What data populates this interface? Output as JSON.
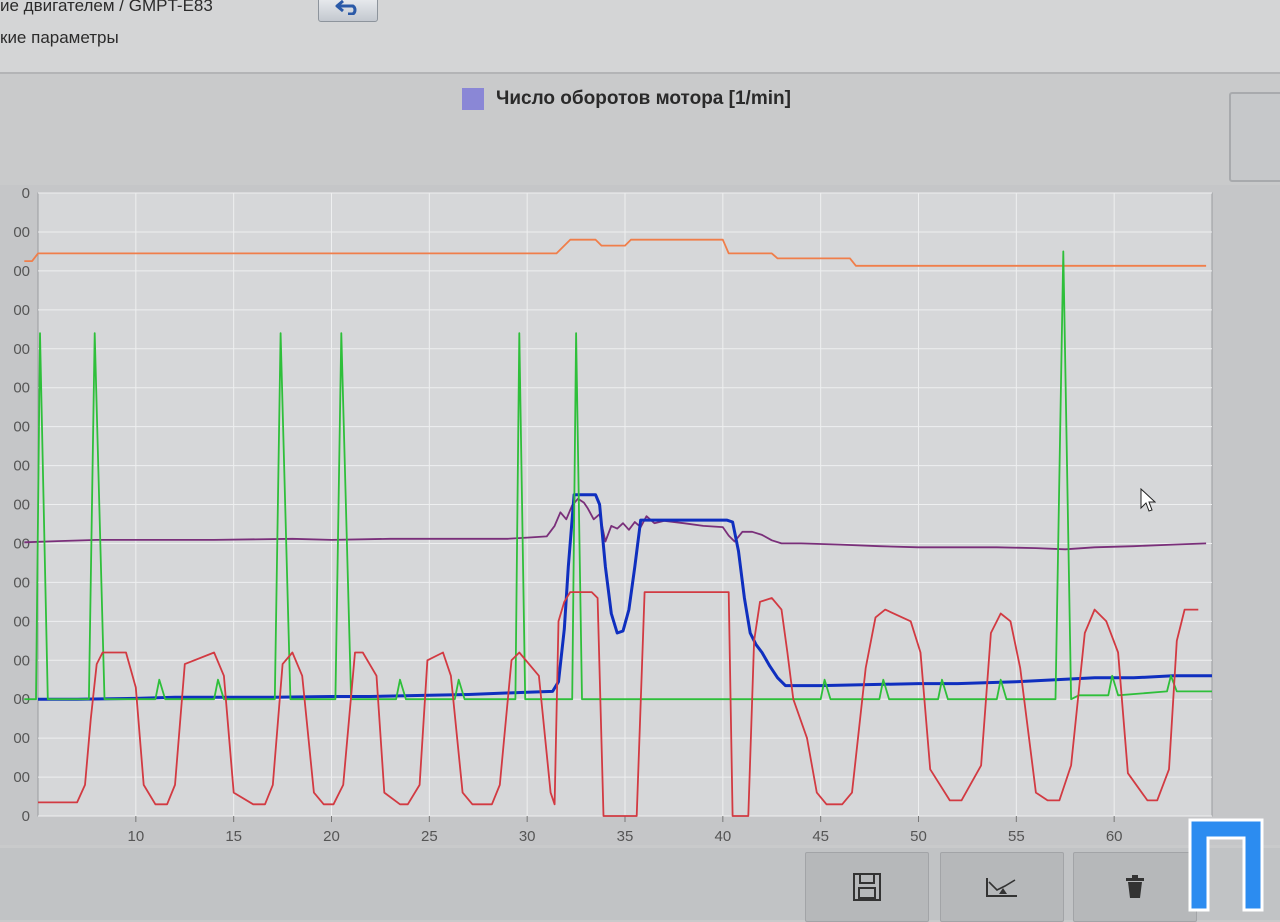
{
  "header": {
    "title_line1": "ие двигателем / GMPT-E83",
    "title_line2": "кие параметры",
    "back_icon": "back-arrow-icon"
  },
  "legend": {
    "label": "Число оборотов мотора [1/min]",
    "swatch_color": "#8a87d6"
  },
  "chart_data": {
    "type": "line",
    "title": "Число оборотов мотора [1/min]",
    "xlabel": "",
    "ylabel": "",
    "xlim": [
      5,
      65
    ],
    "ylim": [
      0,
      1600
    ],
    "x_ticks": [
      "10",
      "15",
      "20",
      "25",
      "30",
      "35",
      "40",
      "45",
      "50",
      "55",
      "60"
    ],
    "y_ticks": [
      "0",
      "00",
      "00",
      "00",
      "00",
      "00",
      "00",
      "00",
      "00",
      "00",
      "00",
      "00",
      "00",
      "00",
      "00",
      "00",
      "0"
    ],
    "grid": true,
    "series": [
      {
        "color": "#f07e4a",
        "x": [
          4.3,
          4.7,
          5.0,
          31.5,
          31.8,
          32.2,
          33.5,
          33.8,
          35.0,
          35.3,
          40.0,
          40.3,
          42.5,
          42.8,
          46.5,
          46.8,
          64.7
        ],
        "y": [
          1425,
          1425,
          1445,
          1445,
          1460,
          1480,
          1480,
          1465,
          1465,
          1480,
          1480,
          1445,
          1445,
          1432,
          1432,
          1413,
          1413
        ]
      },
      {
        "color": "#7a2f7a",
        "x": [
          4.3,
          6,
          8,
          10,
          14,
          18,
          20,
          23,
          25,
          27,
          29,
          30,
          31.0,
          31.4,
          31.7,
          32.0,
          32.3,
          32.6,
          32.9,
          33.1,
          33.4,
          33.7,
          34.0,
          34.3,
          34.6,
          34.9,
          35.2,
          35.5,
          35.8,
          36.1,
          36.5,
          37,
          38,
          39,
          40,
          40.3,
          40.6,
          41,
          41.5,
          42,
          42.5,
          43,
          44,
          46,
          48,
          50,
          52,
          54,
          56,
          57.5,
          59,
          61,
          63,
          64.7
        ],
        "y": [
          703,
          706,
          709,
          709,
          709,
          712,
          709,
          712,
          712,
          712,
          712,
          715,
          718,
          745,
          780,
          762,
          798,
          815,
          805,
          790,
          762,
          775,
          705,
          745,
          738,
          752,
          735,
          755,
          742,
          770,
          752,
          758,
          752,
          745,
          742,
          720,
          705,
          730,
          730,
          722,
          708,
          700,
          700,
          697,
          693,
          690,
          690,
          690,
          688,
          685,
          690,
          693,
          697,
          700
        ]
      },
      {
        "color": "#0f2fbf",
        "x": [
          5,
          7,
          10,
          12,
          15,
          17,
          20,
          22,
          25,
          27,
          30,
          31.3,
          31.6,
          31.9,
          32.1,
          32.4,
          33.5,
          33.7,
          34.0,
          34.3,
          34.6,
          34.9,
          35.2,
          35.5,
          35.8,
          40.2,
          40.5,
          40.8,
          41.1,
          41.4,
          41.7,
          42.0,
          42.4,
          42.8,
          43.2,
          45,
          48,
          50,
          52,
          55,
          57,
          59,
          61,
          63,
          65
        ],
        "y": [
          300,
          300,
          302,
          305,
          305,
          305,
          307,
          307,
          310,
          312,
          318,
          320,
          345,
          480,
          640,
          825,
          825,
          800,
          640,
          520,
          470,
          475,
          530,
          640,
          760,
          760,
          755,
          680,
          560,
          470,
          440,
          420,
          385,
          355,
          335,
          335,
          338,
          340,
          340,
          345,
          350,
          355,
          355,
          360,
          360
        ]
      },
      {
        "color": "#2ebf3a",
        "x": [
          4.3,
          4.9,
          5.1,
          5.5,
          6.0,
          6.4,
          7.6,
          7.9,
          8.4,
          8.8,
          11.0,
          11.2,
          11.5,
          14.0,
          14.2,
          14.5,
          17.1,
          17.4,
          17.9,
          18.3,
          20.2,
          20.5,
          21.0,
          21.4,
          23.3,
          23.5,
          23.8,
          26.3,
          26.5,
          26.8,
          29.4,
          29.6,
          29.9,
          32.3,
          32.5,
          32.8,
          33.2,
          45.0,
          45.2,
          45.5,
          48.0,
          48.2,
          48.5,
          51.0,
          51.2,
          51.5,
          54.0,
          54.2,
          54.5,
          57.0,
          57.4,
          57.8,
          58.2,
          59.7,
          59.9,
          60.2,
          62.7,
          62.9,
          63.2,
          65.0
        ],
        "y": [
          300,
          300,
          1240,
          300,
          300,
          300,
          300,
          1240,
          300,
          300,
          300,
          350,
          300,
          300,
          350,
          300,
          300,
          1240,
          300,
          300,
          300,
          1240,
          300,
          300,
          300,
          350,
          300,
          300,
          350,
          300,
          300,
          1240,
          300,
          300,
          1240,
          300,
          300,
          300,
          350,
          300,
          300,
          350,
          300,
          300,
          350,
          300,
          300,
          350,
          300,
          300,
          1450,
          300,
          310,
          310,
          360,
          310,
          320,
          360,
          320,
          320
        ]
      },
      {
        "color": "#d23a42",
        "x": [
          5,
          7,
          7.4,
          7.7,
          8.0,
          8.3,
          9.5,
          10.0,
          10.4,
          11.0,
          11.6,
          12.0,
          12.5,
          14.0,
          14.5,
          15.0,
          16.0,
          16.6,
          17.0,
          17.5,
          18.0,
          18.5,
          19.1,
          19.6,
          20.1,
          20.6,
          21.2,
          21.6,
          22.3,
          22.7,
          23.5,
          23.9,
          24.5,
          24.9,
          25.7,
          26.1,
          26.7,
          27.2,
          28.2,
          28.6,
          29.2,
          29.6,
          30.6,
          31.2,
          31.4,
          31.6,
          31.9,
          32.2,
          32.5,
          33.0,
          33.3,
          33.6,
          33.9,
          34.1,
          34.3,
          34.6,
          34.9,
          35.2,
          35.6,
          36,
          38,
          40.0,
          40.3,
          40.5,
          40.8,
          41.0,
          41.3,
          41.6,
          41.9,
          42.5,
          43.0,
          43.3,
          43.6,
          44.3,
          44.8,
          45.3,
          46.1,
          46.6,
          47.3,
          47.8,
          48.3,
          49.6,
          50.1,
          50.6,
          51.6,
          52.2,
          53.2,
          53.7,
          54.2,
          54.7,
          55.2,
          56.0,
          56.6,
          57.2,
          57.8,
          58.5,
          59.0,
          59.6,
          60.2,
          60.7,
          61.7,
          62.2,
          62.8,
          63.2,
          63.6,
          64.3
        ],
        "y": [
          35,
          35,
          80,
          250,
          390,
          420,
          420,
          330,
          80,
          30,
          30,
          80,
          390,
          420,
          360,
          60,
          30,
          30,
          80,
          390,
          420,
          360,
          60,
          30,
          30,
          80,
          420,
          420,
          360,
          60,
          30,
          30,
          80,
          400,
          420,
          360,
          60,
          30,
          30,
          80,
          400,
          420,
          360,
          60,
          30,
          500,
          550,
          575,
          575,
          575,
          575,
          560,
          0,
          0,
          0,
          0,
          0,
          0,
          0,
          575,
          575,
          575,
          575,
          0,
          0,
          0,
          0,
          450,
          550,
          560,
          530,
          420,
          300,
          200,
          60,
          30,
          30,
          60,
          380,
          510,
          530,
          500,
          420,
          120,
          40,
          40,
          130,
          470,
          520,
          500,
          380,
          60,
          40,
          40,
          130,
          470,
          530,
          500,
          420,
          110,
          40,
          40,
          120,
          450,
          530,
          530
        ]
      }
    ]
  },
  "toolbar": {
    "buttons": [
      {
        "icon": "save-icon"
      },
      {
        "icon": "chart-cursor-icon"
      },
      {
        "icon": "delete-icon"
      }
    ]
  },
  "cursor": {
    "icon": "mouse-cursor-icon"
  }
}
